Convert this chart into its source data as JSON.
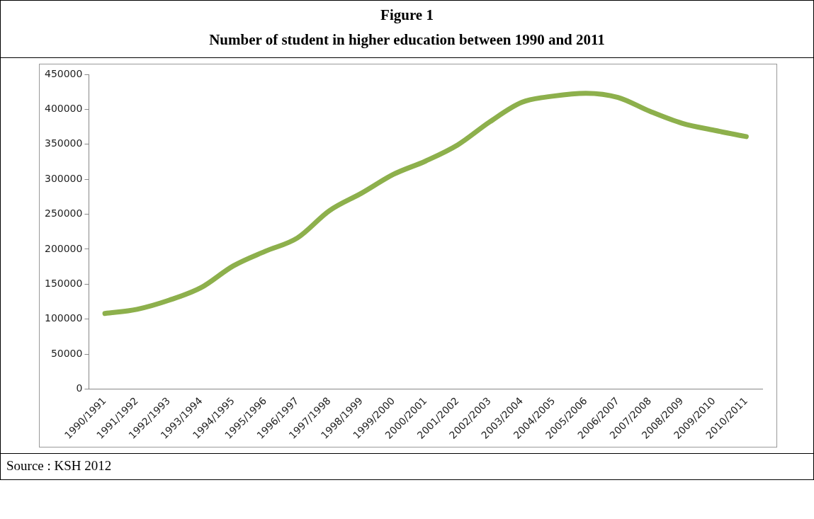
{
  "chart_data": {
    "type": "line",
    "title": "Figure 1",
    "subtitle": "Number of student in higher education between 1990 and 2011",
    "categories": [
      "1990/1991",
      "1991/1992",
      "1992/1993",
      "1993/1994",
      "1994/1995",
      "1995/1996",
      "1996/1997",
      "1997/1998",
      "1998/1999",
      "1999/2000",
      "2000/2001",
      "2001/2002",
      "2002/2003",
      "2003/2004",
      "2004/2005",
      "2005/2006",
      "2006/2007",
      "2007/2008",
      "2008/2009",
      "2009/2010",
      "2010/2011"
    ],
    "series": [
      {
        "color": "#8db04c",
        "values": [
          108000,
          114000,
          127000,
          145000,
          176000,
          197000,
          216000,
          255000,
          280000,
          307000,
          326000,
          349000,
          382000,
          410000,
          419000,
          423000,
          417000,
          397000,
          380000,
          370000,
          361000
        ]
      }
    ],
    "ylim": [
      0,
      450000
    ],
    "yticks": [
      0,
      50000,
      100000,
      150000,
      200000,
      250000,
      300000,
      350000,
      400000,
      450000
    ],
    "grid": false,
    "legend": false,
    "marker": "none",
    "line_style": "solid",
    "annotations": [
      "Source : KSH 2012"
    ]
  }
}
